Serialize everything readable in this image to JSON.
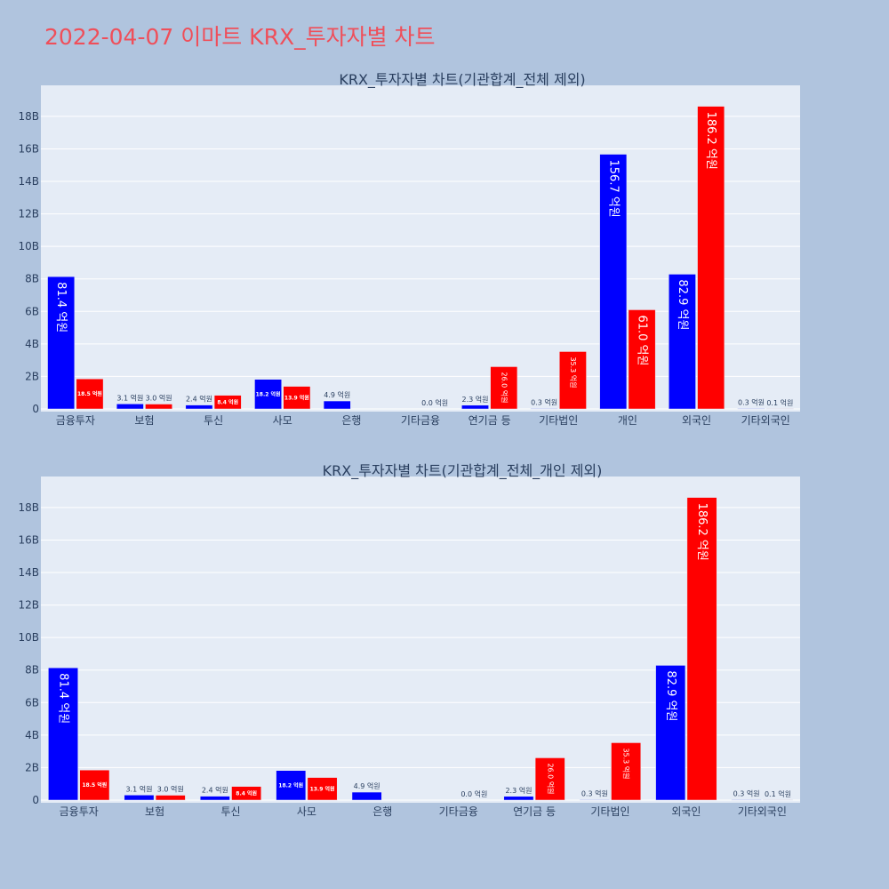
{
  "page_title": "2022-04-07 이마트 KRX_투자자별 차트",
  "colors": {
    "background": "#b0c4de",
    "plot_bg": "#e5ecf6",
    "series1": "#0000ff",
    "series2": "#ff0000",
    "title": "#ef4f5a"
  },
  "chart_data": [
    {
      "type": "bar",
      "title": "KRX_투자자별 차트(기관합계_전체 제외)",
      "categories": [
        "금융투자",
        "보험",
        "투신",
        "사모",
        "은행",
        "기타금융",
        "연기금 등",
        "기타법인",
        "개인",
        "외국인",
        "기타외국인"
      ],
      "series": [
        {
          "values": [
            8.14,
            0.31,
            0.24,
            1.82,
            0.49,
            0.0,
            0.23,
            0.03,
            15.67,
            8.29,
            0.03
          ],
          "labels": [
            "81.4 억원",
            "3.1 억원",
            "2.4 억원",
            "18.2 억원",
            "4.9 억원",
            "",
            "2.3 억원",
            "0.3 억원",
            "156.7 억원",
            "82.9 억원",
            "0.3 억원"
          ]
        },
        {
          "values": [
            1.85,
            0.3,
            0.84,
            1.39,
            0,
            0.0,
            2.6,
            3.53,
            6.1,
            18.62,
            0.01
          ],
          "labels": [
            "18.5 억원",
            "3.0 억원",
            "8.4 억원",
            "13.9 억원",
            "",
            "0.0 억원",
            "26.0 억원",
            "35.3 억원",
            "61.0 억원",
            "186.2 억원",
            "0.1 억원"
          ]
        }
      ],
      "ylim": [
        0,
        19.8
      ],
      "yticks": [
        "0",
        "2B",
        "4B",
        "6B",
        "8B",
        "10B",
        "12B",
        "14B",
        "16B",
        "18B"
      ],
      "grid": true
    },
    {
      "type": "bar",
      "title": "KRX_투자자별 차트(기관합계_전체_개인 제외)",
      "categories": [
        "금융투자",
        "보험",
        "투신",
        "사모",
        "은행",
        "기타금융",
        "연기금 등",
        "기타법인",
        "외국인",
        "기타외국인"
      ],
      "series": [
        {
          "values": [
            8.14,
            0.31,
            0.24,
            1.82,
            0.49,
            0.0,
            0.23,
            0.03,
            8.29,
            0.03
          ],
          "labels": [
            "81.4 억원",
            "3.1 억원",
            "2.4 억원",
            "18.2 억원",
            "4.9 억원",
            "",
            "2.3 억원",
            "0.3 억원",
            "82.9 억원",
            "0.3 억원"
          ]
        },
        {
          "values": [
            1.85,
            0.3,
            0.84,
            1.39,
            0,
            0.0,
            2.6,
            3.53,
            18.62,
            0.01
          ],
          "labels": [
            "18.5 억원",
            "3.0 억원",
            "8.4 억원",
            "13.9 억원",
            "",
            "0.0 억원",
            "26.0 억원",
            "35.3 억원",
            "186.2 억원",
            "0.1 억원"
          ]
        }
      ],
      "ylim": [
        0,
        19.8
      ],
      "yticks": [
        "0",
        "2B",
        "4B",
        "6B",
        "8B",
        "10B",
        "12B",
        "14B",
        "16B",
        "18B"
      ],
      "grid": true
    }
  ]
}
